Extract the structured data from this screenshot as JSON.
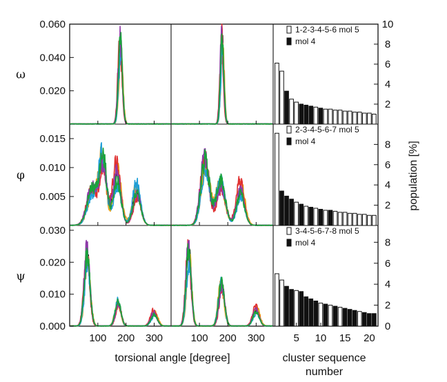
{
  "chart_data": {
    "type": "multi-panel",
    "row_labels": [
      "ω",
      "φ",
      "ψ"
    ],
    "left_xlabel": "torsional angle  [degree]",
    "right_xlabel_line1": "cluster sequence",
    "right_xlabel_line2": "number",
    "right_ylabel": "population  [%]",
    "x_tick_labels": [
      "100",
      "200",
      "300"
    ],
    "x_ticks": [
      100,
      200,
      300
    ],
    "xlim": [
      0,
      360
    ],
    "bar_tick_labels": [
      "5",
      "10",
      "15",
      "20"
    ],
    "bar_ticks": [
      5,
      10,
      15,
      20
    ],
    "series_colors": [
      "#000000",
      "#e8a317",
      "#e03030",
      "#1e9fd8",
      "#8e3aa8",
      "#1aa33c"
    ],
    "rows": [
      {
        "label": "ω",
        "ylim": [
          0,
          0.06
        ],
        "y_ticks": [
          0.02,
          0.04,
          0.06
        ],
        "y_tick_labels": [
          "0.020",
          "0.040",
          "0.060"
        ],
        "left_peaks": [
          {
            "center": 180,
            "width": 7,
            "height": 0.048
          }
        ],
        "mid_peaks": [
          {
            "center": 180,
            "width": 6,
            "height": 0.05
          }
        ],
        "bars": {
          "ylim": [
            0,
            10
          ],
          "y_ticks": [
            2,
            4,
            6,
            8,
            10
          ],
          "y_tick_labels": [
            "2",
            "4",
            "6",
            "8",
            "10"
          ],
          "legend": [
            "1-2-3-4-5-6 mol 5",
            "mol 4"
          ],
          "values": [
            6.1,
            5.3,
            3.3,
            2.5,
            2.2,
            2.0,
            1.9,
            1.8,
            1.7,
            1.6,
            1.5,
            1.5,
            1.4,
            1.4,
            1.3,
            1.3,
            1.2,
            1.2,
            1.1,
            1.1,
            1.0
          ],
          "mol4": [
            false,
            false,
            true,
            false,
            false,
            true,
            true,
            true,
            false,
            true,
            false,
            false,
            false,
            false,
            false,
            false,
            false,
            false,
            false,
            false,
            false
          ]
        }
      },
      {
        "label": "φ",
        "ylim": [
          0,
          0.0175
        ],
        "y_ticks": [
          0.005,
          0.01,
          0.015
        ],
        "y_tick_labels": [
          "0.005",
          "0.010",
          "0.015"
        ],
        "left_peaks": [
          {
            "center": 80,
            "width": 18,
            "height": 0.006
          },
          {
            "center": 118,
            "width": 13,
            "height": 0.011
          },
          {
            "center": 168,
            "width": 14,
            "height": 0.0085
          },
          {
            "center": 238,
            "width": 14,
            "height": 0.0055
          }
        ],
        "mid_peaks": [
          {
            "center": 120,
            "width": 15,
            "height": 0.011
          },
          {
            "center": 175,
            "width": 16,
            "height": 0.007
          },
          {
            "center": 245,
            "width": 14,
            "height": 0.006
          }
        ],
        "bars": {
          "ylim": [
            0,
            10
          ],
          "y_ticks": [
            2,
            4,
            6,
            8
          ],
          "y_tick_labels": [
            "2",
            "4",
            "6",
            "8"
          ],
          "legend": [
            "2-3-4-5-6-7 mol 5",
            "mol 4"
          ],
          "values": [
            9.1,
            3.4,
            2.9,
            2.6,
            2.3,
            2.1,
            1.9,
            1.8,
            1.7,
            1.6,
            1.5,
            1.5,
            1.4,
            1.3,
            1.3,
            1.2,
            1.2,
            1.1,
            1.1,
            1.0,
            1.0
          ],
          "mol4": [
            false,
            true,
            true,
            true,
            false,
            true,
            false,
            true,
            false,
            true,
            false,
            true,
            false,
            false,
            false,
            false,
            false,
            false,
            false,
            false,
            false
          ]
        }
      },
      {
        "label": "ψ",
        "ylim": [
          0,
          0.0315
        ],
        "y_ticks": [
          0,
          0.01,
          0.02,
          0.03
        ],
        "y_tick_labels": [
          "0.000",
          "0.010",
          "0.020",
          "0.030"
        ],
        "left_peaks": [
          {
            "center": 62,
            "width": 10,
            "height": 0.022
          },
          {
            "center": 172,
            "width": 10,
            "height": 0.007
          },
          {
            "center": 300,
            "width": 11,
            "height": 0.004
          }
        ],
        "mid_peaks": [
          {
            "center": 62,
            "width": 9,
            "height": 0.023
          },
          {
            "center": 178,
            "width": 10,
            "height": 0.013
          },
          {
            "center": 300,
            "width": 11,
            "height": 0.005
          }
        ],
        "bars": {
          "ylim": [
            0,
            9.6
          ],
          "y_ticks": [
            0,
            2,
            4,
            6,
            8
          ],
          "y_tick_labels": [
            "0",
            "2",
            "4",
            "6",
            "8"
          ],
          "legend": [
            "3-4-5-6-7-8 mol 5",
            "mol 4"
          ],
          "values": [
            5.0,
            4.4,
            3.8,
            3.5,
            3.4,
            3.3,
            2.8,
            2.6,
            2.4,
            2.2,
            2.1,
            2.0,
            1.9,
            1.8,
            1.7,
            1.6,
            1.5,
            1.4,
            1.3,
            1.2,
            1.2
          ],
          "mol4": [
            false,
            false,
            true,
            true,
            false,
            true,
            true,
            true,
            true,
            false,
            true,
            false,
            true,
            false,
            true,
            true,
            true,
            false,
            true,
            true,
            true
          ]
        }
      }
    ]
  }
}
